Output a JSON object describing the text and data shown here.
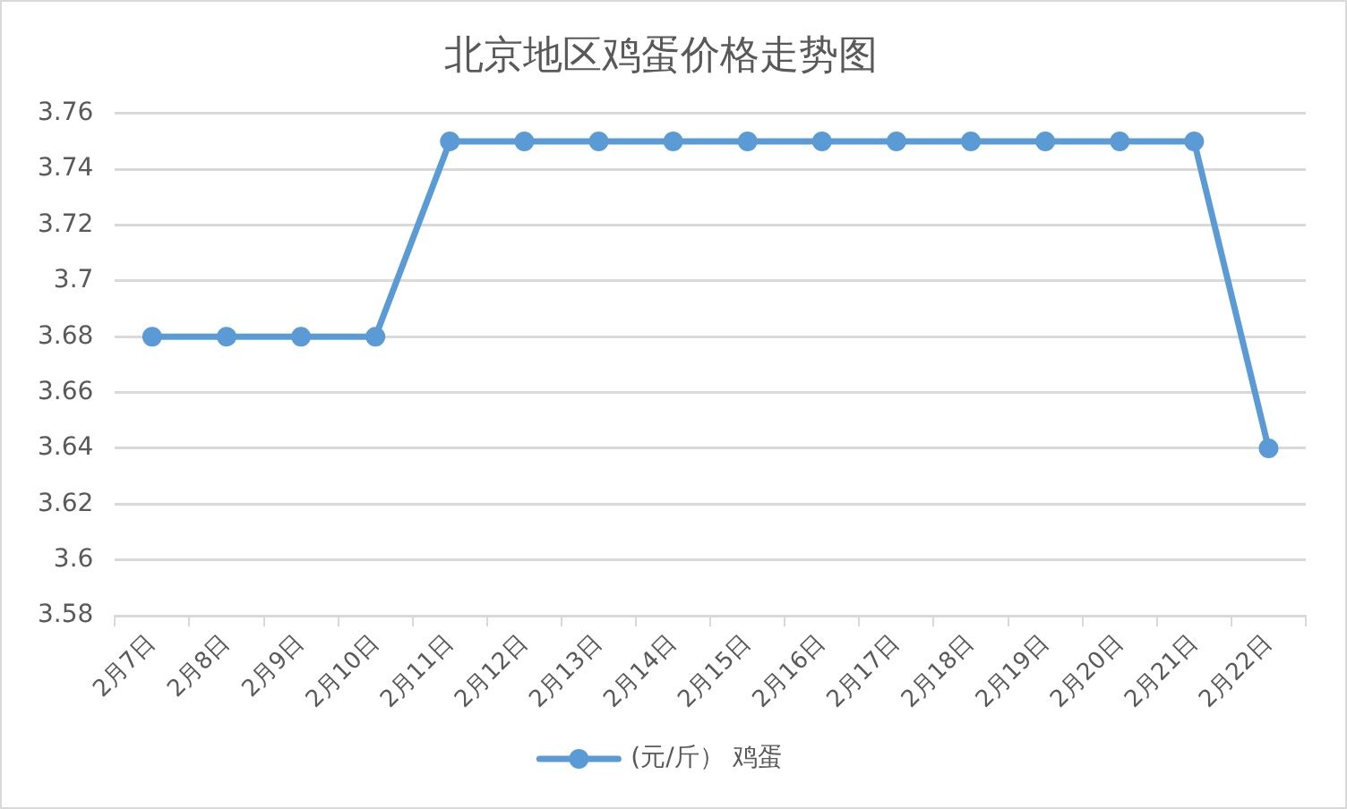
{
  "chart_data": {
    "type": "line",
    "title": "北京地区鸡蛋价格走势图",
    "categories": [
      "2月7日",
      "2月8日",
      "2月9日",
      "2月10日",
      "2月11日",
      "2月12日",
      "2月13日",
      "2月14日",
      "2月15日",
      "2月16日",
      "2月17日",
      "2月18日",
      "2月19日",
      "2月20日",
      "2月21日",
      "2月22日"
    ],
    "series": [
      {
        "name": "(元/斤） 鸡蛋",
        "color": "#5b9bd5",
        "values": [
          3.68,
          3.68,
          3.68,
          3.68,
          3.75,
          3.75,
          3.75,
          3.75,
          3.75,
          3.75,
          3.75,
          3.75,
          3.75,
          3.75,
          3.75,
          3.64
        ]
      }
    ],
    "ylim": [
      3.58,
      3.76
    ],
    "yticks": [
      3.58,
      3.6,
      3.62,
      3.64,
      3.66,
      3.68,
      3.7,
      3.72,
      3.74,
      3.76
    ],
    "grid": "y",
    "legend": "bottom",
    "marker": "circle",
    "line_style": "solid"
  }
}
